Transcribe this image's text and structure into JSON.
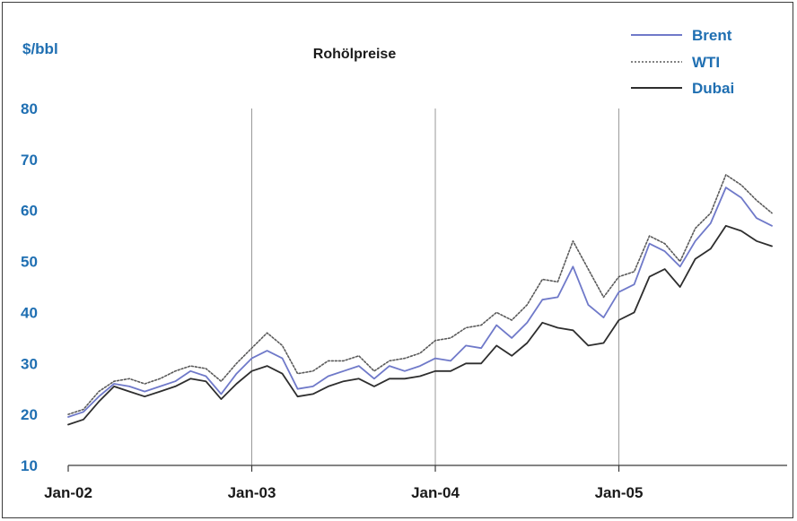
{
  "chart_data": {
    "type": "line",
    "title": "Rohölpreise",
    "ylabel": "$/bbl",
    "xlabel": "",
    "ylim": [
      10,
      80
    ],
    "yticks": [
      "80",
      "70",
      "60",
      "50",
      "40",
      "30",
      "20",
      "10"
    ],
    "xlim": [
      "2002-01",
      "2005-12"
    ],
    "xticks": [
      "Jan-02",
      "Jan-03",
      "Jan-04",
      "Jan-05"
    ],
    "grid": "vertical at year starts",
    "legend": "top-right",
    "x": [
      "2002-01",
      "2002-02",
      "2002-03",
      "2002-04",
      "2002-05",
      "2002-06",
      "2002-07",
      "2002-08",
      "2002-09",
      "2002-10",
      "2002-11",
      "2002-12",
      "2003-01",
      "2003-02",
      "2003-03",
      "2003-04",
      "2003-05",
      "2003-06",
      "2003-07",
      "2003-08",
      "2003-09",
      "2003-10",
      "2003-11",
      "2003-12",
      "2004-01",
      "2004-02",
      "2004-03",
      "2004-04",
      "2004-05",
      "2004-06",
      "2004-07",
      "2004-08",
      "2004-09",
      "2004-10",
      "2004-11",
      "2004-12",
      "2005-01",
      "2005-02",
      "2005-03",
      "2005-04",
      "2005-05",
      "2005-06",
      "2005-07",
      "2005-08",
      "2005-09",
      "2005-10",
      "2005-11"
    ],
    "series": [
      {
        "name": "Brent",
        "color": "#6f79c9",
        "style": "solid",
        "values": [
          19.5,
          20.5,
          23.5,
          26.0,
          25.5,
          24.5,
          25.5,
          26.5,
          28.5,
          27.5,
          24.0,
          28.0,
          31.0,
          32.5,
          31.0,
          25.0,
          25.5,
          27.5,
          28.5,
          29.5,
          27.0,
          29.5,
          28.5,
          29.5,
          31.0,
          30.5,
          33.5,
          33.0,
          37.5,
          35.0,
          38.0,
          42.5,
          43.0,
          49.0,
          41.5,
          39.0,
          44.0,
          45.5,
          53.5,
          52.0,
          49.0,
          54.0,
          57.5,
          64.5,
          62.5,
          58.5,
          57.0
        ]
      },
      {
        "name": "WTI",
        "color": "#5a5a5a",
        "style": "dotted",
        "values": [
          20.0,
          21.0,
          24.5,
          26.5,
          27.0,
          26.0,
          27.0,
          28.5,
          29.5,
          29.0,
          26.5,
          30.0,
          33.0,
          36.0,
          33.5,
          28.0,
          28.5,
          30.5,
          30.5,
          31.5,
          28.5,
          30.5,
          31.0,
          32.0,
          34.5,
          35.0,
          37.0,
          37.5,
          40.0,
          38.5,
          41.5,
          46.5,
          46.0,
          54.0,
          48.5,
          43.0,
          47.0,
          48.0,
          55.0,
          53.5,
          50.0,
          56.5,
          59.5,
          67.0,
          65.0,
          62.0,
          59.5
        ]
      },
      {
        "name": "Dubai",
        "color": "#2e2e2e",
        "style": "solid",
        "values": [
          18.0,
          19.0,
          22.5,
          25.5,
          24.5,
          23.5,
          24.5,
          25.5,
          27.0,
          26.5,
          23.0,
          26.0,
          28.5,
          29.5,
          28.0,
          23.5,
          24.0,
          25.5,
          26.5,
          27.0,
          25.5,
          27.0,
          27.0,
          27.5,
          28.5,
          28.5,
          30.0,
          30.0,
          33.5,
          31.5,
          34.0,
          38.0,
          37.0,
          36.5,
          33.5,
          34.0,
          38.5,
          40.0,
          47.0,
          48.5,
          45.0,
          50.5,
          52.5,
          57.0,
          56.0,
          54.0,
          53.0
        ]
      }
    ]
  }
}
